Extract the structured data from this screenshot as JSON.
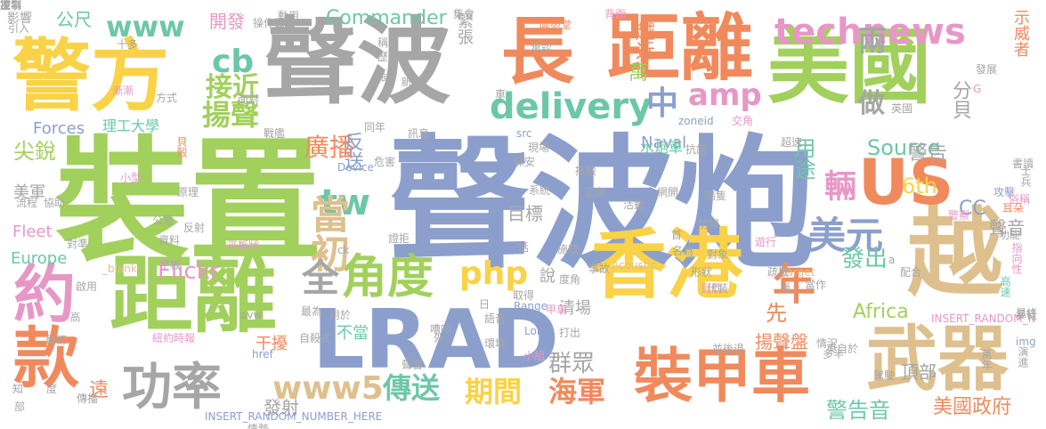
{
  "palette": {
    "gray": "#a6a6a6",
    "blue": "#8c9fcc",
    "green": "#a2d05c",
    "orange": "#f08a5d",
    "tan": "#dec08e",
    "yellow": "#fad247",
    "teal": "#6cc7a8",
    "pink": "#e797c6"
  },
  "words": [
    {
      "text": "聲波炮",
      "color": "blue"
    },
    {
      "text": "裝置",
      "color": "green"
    },
    {
      "text": "聲波",
      "color": "gray"
    },
    {
      "text": "美國",
      "color": "green"
    },
    {
      "text": "距離",
      "color": "orange"
    },
    {
      "text": "警方",
      "color": "yellow"
    },
    {
      "text": "長",
      "color": "orange"
    },
    {
      "text": "LRAD",
      "color": "blue"
    },
    {
      "text": "距離",
      "color": "green"
    },
    {
      "text": "香港",
      "color": "yellow"
    },
    {
      "text": "越",
      "color": "tan"
    },
    {
      "text": "US",
      "color": "orange"
    },
    {
      "text": "武器",
      "color": "tan"
    },
    {
      "text": "裝甲車",
      "color": "orange"
    },
    {
      "text": "款",
      "color": "orange"
    },
    {
      "text": "約",
      "color": "pink"
    },
    {
      "text": "功率",
      "color": "gray"
    },
    {
      "text": "角度",
      "color": "green"
    },
    {
      "text": "technews",
      "color": "pink"
    },
    {
      "text": "delivery",
      "color": "teal"
    },
    {
      "text": "amp",
      "color": "pink"
    },
    {
      "text": "www",
      "color": "teal"
    },
    {
      "text": "cb",
      "color": "teal"
    },
    {
      "text": "揚聲",
      "color": "green"
    },
    {
      "text": "接近",
      "color": "green"
    },
    {
      "text": "中",
      "color": "blue"
    },
    {
      "text": "兩",
      "color": "gray"
    },
    {
      "text": "做",
      "color": "gray"
    },
    {
      "text": "tw",
      "color": "teal"
    },
    {
      "text": "當初",
      "color": "tan"
    },
    {
      "text": "廣播",
      "color": "orange"
    },
    {
      "text": "輛",
      "color": "pink"
    },
    {
      "text": "美元",
      "color": "blue"
    },
    {
      "text": "年",
      "color": "orange"
    },
    {
      "text": "全",
      "color": "gray"
    },
    {
      "text": "php",
      "color": "yellow"
    },
    {
      "text": "www5",
      "color": "tan"
    },
    {
      "text": "傳送",
      "color": "teal"
    },
    {
      "text": "期間",
      "color": "yellow"
    },
    {
      "text": "海軍",
      "color": "orange"
    },
    {
      "text": "警告音",
      "color": "teal"
    },
    {
      "text": "美國政府",
      "color": "orange"
    },
    {
      "text": "群眾",
      "color": "gray"
    },
    {
      "text": "發射",
      "color": "gray"
    },
    {
      "text": "Commander",
      "color": "teal"
    },
    {
      "text": "開發",
      "color": "pink"
    },
    {
      "text": "公尺",
      "color": "teal"
    },
    {
      "text": "Forces",
      "color": "blue"
    },
    {
      "text": "理工大學",
      "color": "teal"
    },
    {
      "text": "尖銳",
      "color": "green"
    },
    {
      "text": "美軍",
      "color": "gray"
    },
    {
      "text": "Fleet",
      "color": "pink"
    },
    {
      "text": "Europe",
      "color": "teal"
    },
    {
      "text": "Flickr",
      "color": "pink"
    },
    {
      "text": "Naval",
      "color": "blue"
    },
    {
      "text": "Source",
      "color": "teal"
    },
    {
      "text": "6th",
      "color": "yellow"
    },
    {
      "text": "CC",
      "color": "blue"
    },
    {
      "text": "用途",
      "color": "teal"
    },
    {
      "text": "警告",
      "color": "gray"
    },
    {
      "text": "發出",
      "color": "teal"
    },
    {
      "text": "分貝",
      "color": "gray"
    },
    {
      "text": "Africa",
      "color": "green"
    },
    {
      "text": "揚聲盤",
      "color": "orange"
    },
    {
      "text": "聲音",
      "color": "gray"
    },
    {
      "text": "目標",
      "color": "gray"
    },
    {
      "text": "頂部",
      "color": "gray"
    },
    {
      "text": "清場",
      "color": "gray"
    },
    {
      "text": "不當",
      "color": "teal"
    },
    {
      "text": "先",
      "color": "orange"
    },
    {
      "text": "說",
      "color": "gray"
    },
    {
      "text": "a4b3f35b",
      "color": "blue"
    },
    {
      "text": "情勢",
      "color": "gray"
    },
    {
      "text": "遠",
      "color": "orange"
    },
    {
      "text": "萬",
      "color": "green"
    },
    {
      "text": "越近",
      "color": "orange"
    },
    {
      "text": "緊張",
      "color": "gray"
    },
    {
      "text": "水炮車",
      "color": "teal"
    },
    {
      "text": "反送",
      "color": "blue"
    },
    {
      "text": "干擾",
      "color": "orange"
    },
    {
      "text": "href",
      "color": "blue"
    },
    {
      "text": "INSERT_RANDOM_NUMBER_HERE",
      "color": "blue"
    },
    {
      "text": "INSERT_RANDOM_N",
      "color": "pink"
    },
    {
      "text": "示威者",
      "color": "orange"
    },
    {
      "text": "影響",
      "color": "gray"
    },
    {
      "text": "引入",
      "color": "gray"
    },
    {
      "text": "Device",
      "color": "blue"
    },
    {
      "text": "Acoustic",
      "color": "tan"
    },
    {
      "text": "Range",
      "color": "blue"
    },
    {
      "text": "Long",
      "color": "blue"
    },
    {
      "text": "target",
      "color": "tan"
    },
    {
      "text": "_blank",
      "color": "tan"
    },
    {
      "text": "src",
      "color": "blue"
    },
    {
      "text": "zoneid",
      "color": "blue"
    },
    {
      "text": "img",
      "color": "blue"
    },
    {
      "text": "avw",
      "color": "gray"
    },
    {
      "text": "ck",
      "color": "gray"
    },
    {
      "text": "n",
      "color": "gray"
    },
    {
      "text": "a",
      "color": "gray"
    },
    {
      "text": "日",
      "color": "gray"
    },
    {
      "text": "G",
      "color": "pink"
    },
    {
      "text": "紐約時報",
      "color": "pink"
    },
    {
      "text": "最初",
      "color": "gray"
    },
    {
      "text": "攻擊",
      "color": "blue"
    },
    {
      "text": "功能",
      "color": "gray"
    },
    {
      "text": "指向性",
      "color": "pink"
    },
    {
      "text": "高速",
      "color": "teal"
    },
    {
      "text": "暴徒",
      "color": "gray"
    },
    {
      "text": "演進",
      "color": "gray"
    },
    {
      "text": "最終",
      "color": "gray"
    },
    {
      "text": "士兵",
      "color": "gray"
    },
    {
      "text": "俗稱",
      "color": "pink"
    },
    {
      "text": "耳朵",
      "color": "orange"
    },
    {
      "text": "警察",
      "color": "pink"
    },
    {
      "text": "發展",
      "color": "gray"
    },
    {
      "text": "英國",
      "color": "gray"
    },
    {
      "text": "背面",
      "color": "pink"
    },
    {
      "text": "駕駛",
      "color": "gray"
    },
    {
      "text": "動用",
      "color": "gray"
    },
    {
      "text": "十多",
      "color": "gray"
    },
    {
      "text": "操作面",
      "color": "gray"
    },
    {
      "text": "區苑堂",
      "color": "orange"
    },
    {
      "text": "承認",
      "color": "gray"
    },
    {
      "text": "面對",
      "color": "gray"
    },
    {
      "text": "方式",
      "color": "gray"
    },
    {
      "text": "漸漸",
      "color": "pink"
    },
    {
      "text": "戰艦",
      "color": "gray"
    },
    {
      "text": "訊息",
      "color": "gray"
    },
    {
      "text": "保安",
      "color": "gray"
    },
    {
      "text": "現場",
      "color": "gray"
    },
    {
      "text": "危害",
      "color": "gray"
    },
    {
      "text": "流程",
      "color": "gray"
    },
    {
      "text": "協助",
      "color": "gray"
    },
    {
      "text": "原理",
      "color": "gray"
    },
    {
      "text": "小型",
      "color": "pink"
    },
    {
      "text": "公眾",
      "color": "gray"
    },
    {
      "text": "反射",
      "color": "gray"
    },
    {
      "text": "資料",
      "color": "gray"
    },
    {
      "text": "對準",
      "color": "gray"
    },
    {
      "text": "貝殼",
      "color": "orange"
    },
    {
      "text": "平板",
      "color": "gray"
    },
    {
      "text": "平板狀",
      "color": "pink"
    },
    {
      "text": "啟用",
      "color": "gray"
    },
    {
      "text": "高",
      "color": "gray"
    },
    {
      "text": "自殺式",
      "color": "gray"
    },
    {
      "text": "最為",
      "color": "gray"
    },
    {
      "text": "用於",
      "color": "gray"
    },
    {
      "text": "外",
      "color": "gray"
    },
    {
      "text": "嘈吵",
      "color": "gray"
    },
    {
      "text": "小組",
      "color": "pink"
    },
    {
      "text": "聲響",
      "color": "gray"
    },
    {
      "text": "語音",
      "color": "gray"
    },
    {
      "text": "環境",
      "color": "gray"
    },
    {
      "text": "度角",
      "color": "gray"
    },
    {
      "text": "取得",
      "color": "gray"
    },
    {
      "text": "甲車",
      "color": "pink"
    },
    {
      "text": "打出",
      "color": "gray"
    },
    {
      "text": "施放",
      "color": "gray"
    },
    {
      "text": "事故",
      "color": "gray"
    },
    {
      "text": "形狀",
      "color": "gray"
    },
    {
      "text": "目的",
      "color": "pink"
    },
    {
      "text": "並後退",
      "color": "gray"
    },
    {
      "text": "疏散",
      "color": "gray"
    },
    {
      "text": "當作",
      "color": "gray"
    },
    {
      "text": "代裝",
      "color": "gray"
    },
    {
      "text": "壽上",
      "color": "gray"
    },
    {
      "text": "多半",
      "color": "gray"
    },
    {
      "text": "東自於",
      "color": "gray"
    },
    {
      "text": "情況",
      "color": "gray"
    },
    {
      "text": "接駁",
      "color": "gray"
    },
    {
      "text": "定向",
      "color": "gray"
    },
    {
      "text": "系統",
      "color": "gray"
    },
    {
      "text": "活動",
      "color": "gray"
    },
    {
      "text": "防彈",
      "color": "gray"
    },
    {
      "text": "對象",
      "color": "gray"
    },
    {
      "text": "首",
      "color": "gray"
    },
    {
      "text": "名為",
      "color": "gray"
    },
    {
      "text": "遊行",
      "color": "pink"
    },
    {
      "text": "超速",
      "color": "gray"
    },
    {
      "text": "抗議",
      "color": "gray"
    },
    {
      "text": "網開",
      "color": "gray"
    },
    {
      "text": "配合",
      "color": "gray"
    },
    {
      "text": "書讀",
      "color": "gray"
    },
    {
      "text": "船隻",
      "color": "gray"
    },
    {
      "text": "交角",
      "color": "pink"
    },
    {
      "text": "證拒",
      "color": "gray"
    },
    {
      "text": "話",
      "color": "gray"
    },
    {
      "text": "車",
      "color": "gray"
    },
    {
      "text": "時",
      "color": "gray"
    },
    {
      "text": "新",
      "color": "gray"
    },
    {
      "text": "知",
      "color": "gray"
    },
    {
      "text": "度",
      "color": "gray"
    },
    {
      "text": "部",
      "color": "gray"
    },
    {
      "text": "傳播",
      "color": "gray"
    },
    {
      "text": "同年",
      "color": "gray"
    },
    {
      "text": "萬年",
      "color": "gray"
    },
    {
      "text": "集會",
      "color": "gray"
    },
    {
      "text": "稱話",
      "color": "gray"
    },
    {
      "text": "歷史",
      "color": "gray"
    },
    {
      "text": "次",
      "color": "gray"
    },
    {
      "text": "軍事",
      "color": "gray"
    },
    {
      "text": "控制",
      "color": "gray"
    },
    {
      "text": "提制",
      "color": "gray"
    }
  ]
}
